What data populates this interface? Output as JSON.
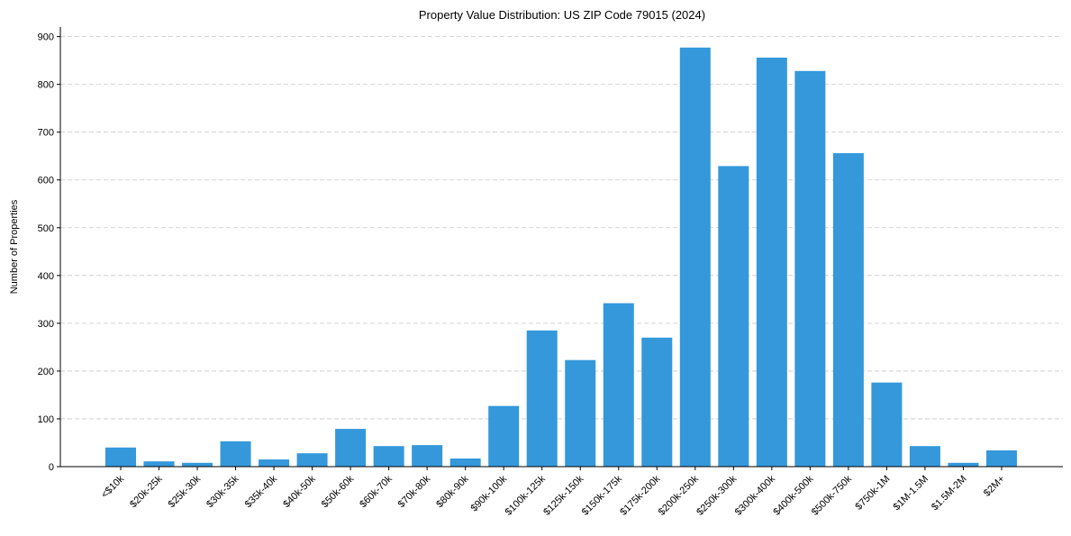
{
  "chart_data": {
    "type": "bar",
    "title": "Property Value Distribution: US ZIP Code 79015 (2024)",
    "xlabel": "",
    "ylabel": "Number of Properties",
    "ylim": [
      0,
      920
    ],
    "yticks": [
      0,
      100,
      200,
      300,
      400,
      500,
      600,
      700,
      800,
      900
    ],
    "grid": "y-dashed",
    "bar_color": "#3498db",
    "categories": [
      "<$10k",
      "$20k-25k",
      "$25k-30k",
      "$30k-35k",
      "$35k-40k",
      "$40k-50k",
      "$50k-60k",
      "$60k-70k",
      "$70k-80k",
      "$80k-90k",
      "$90k-100k",
      "$100k-125k",
      "$125k-150k",
      "$150k-175k",
      "$175k-200k",
      "$200k-250k",
      "$250k-300k",
      "$300k-400k",
      "$400k-500k",
      "$500k-750k",
      "$750k-1M",
      "$1M-1.5M",
      "$1.5M-2M",
      "$2M+"
    ],
    "values": [
      40,
      11,
      8,
      53,
      15,
      28,
      79,
      43,
      45,
      17,
      127,
      285,
      223,
      342,
      270,
      877,
      629,
      856,
      828,
      656,
      176,
      43,
      8,
      34
    ]
  }
}
